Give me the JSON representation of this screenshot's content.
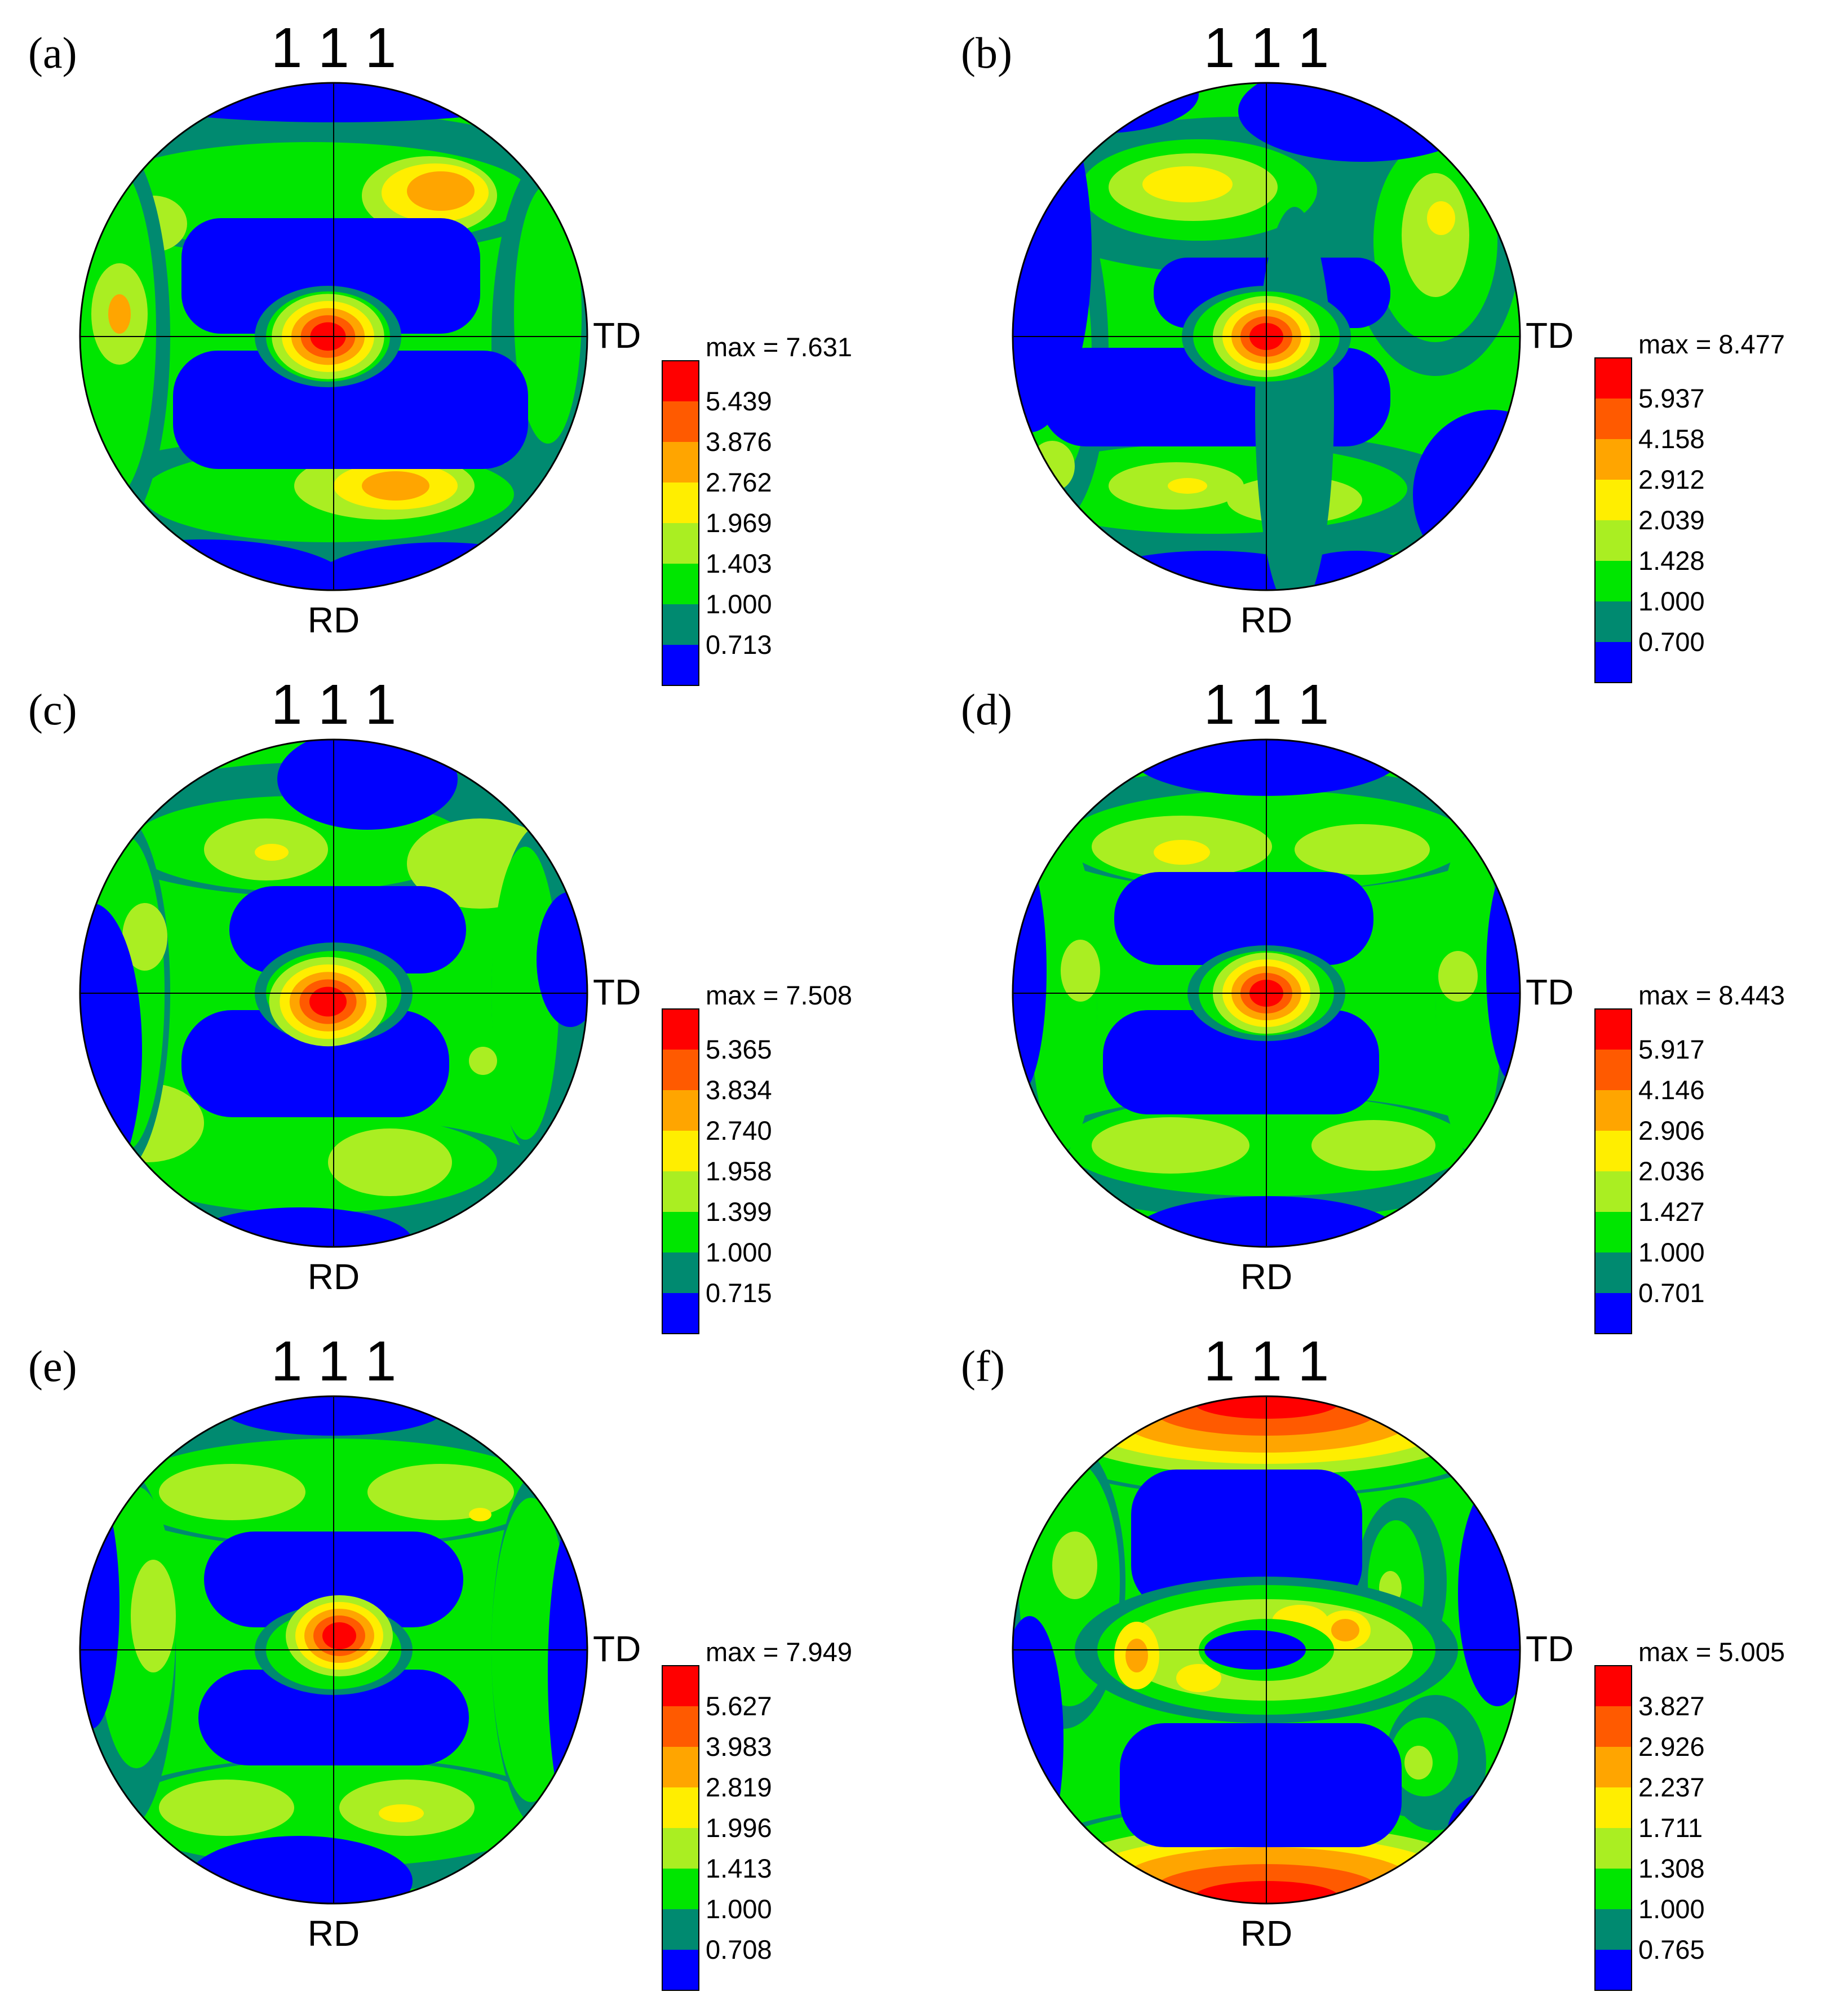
{
  "colors": {
    "level_colors": [
      "#0000ff",
      "#008a70",
      "#00e600",
      "#aaee22",
      "#ffee00",
      "#ffa500",
      "#ff5a00",
      "#ff0000"
    ],
    "outline": "#000000",
    "background": "#ffffff"
  },
  "panels": [
    {
      "label": "(a)",
      "plane": "1 1 1",
      "td_label": "TD",
      "rd_label": "RD",
      "legend": {
        "max_text": "max = 7.631",
        "levels": [
          "5.439",
          "3.876",
          "2.762",
          "1.969",
          "1.403",
          "1.000",
          "0.713"
        ]
      }
    },
    {
      "label": "(b)",
      "plane": "1 1 1",
      "td_label": "TD",
      "rd_label": "RD",
      "legend": {
        "max_text": "max = 8.477",
        "levels": [
          "5.937",
          "4.158",
          "2.912",
          "2.039",
          "1.428",
          "1.000",
          "0.700"
        ]
      }
    },
    {
      "label": "(c)",
      "plane": "1 1 1",
      "td_label": "TD",
      "rd_label": "RD",
      "legend": {
        "max_text": "max = 7.508",
        "levels": [
          "5.365",
          "3.834",
          "2.740",
          "1.958",
          "1.399",
          "1.000",
          "0.715"
        ]
      }
    },
    {
      "label": "(d)",
      "plane": "1 1 1",
      "td_label": "TD",
      "rd_label": "RD",
      "legend": {
        "max_text": "max = 8.443",
        "levels": [
          "5.917",
          "4.146",
          "2.906",
          "2.036",
          "1.427",
          "1.000",
          "0.701"
        ]
      }
    },
    {
      "label": "(e)",
      "plane": "1 1 1",
      "td_label": "TD",
      "rd_label": "RD",
      "legend": {
        "max_text": "max = 7.949",
        "levels": [
          "5.627",
          "3.983",
          "2.819",
          "1.996",
          "1.413",
          "1.000",
          "0.708"
        ]
      }
    },
    {
      "label": "(f)",
      "plane": "1 1 1",
      "td_label": "TD",
      "rd_label": "RD",
      "legend": {
        "max_text": "max = 5.005",
        "levels": [
          "3.827",
          "2.926",
          "2.237",
          "1.711",
          "1.308",
          "1.000",
          "0.765"
        ]
      }
    }
  ]
}
